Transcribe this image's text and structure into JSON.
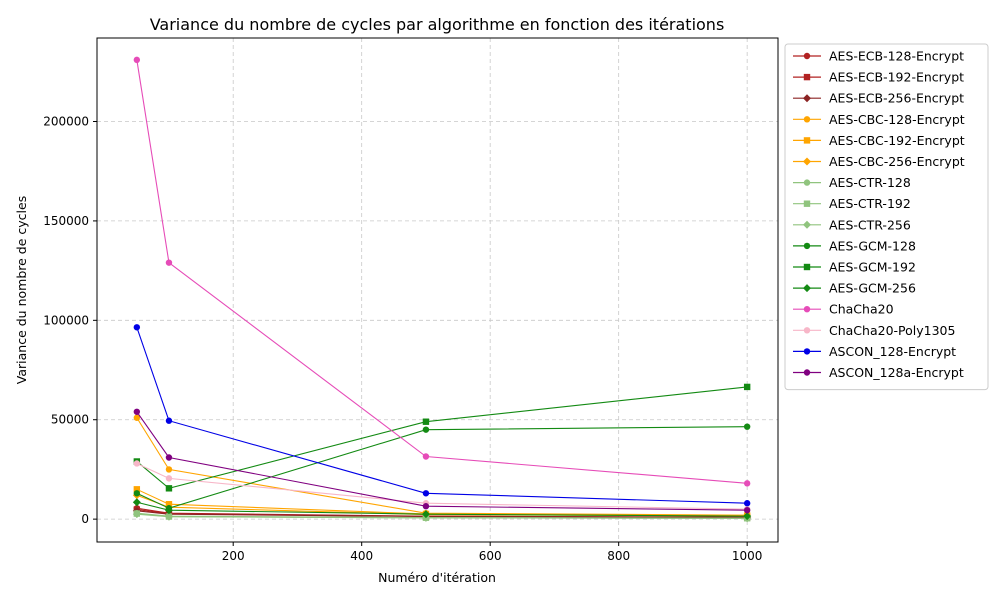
{
  "chart_data": {
    "type": "line",
    "title": "Variance du nombre de cycles par algorithme en fonction des itérations",
    "xlabel": "Numéro d'itération",
    "ylabel": "Variance du nombre de cycles",
    "xlim": [
      -12,
      1048
    ],
    "ylim": [
      -11500,
      242000
    ],
    "xticks": [
      200,
      400,
      600,
      800,
      1000
    ],
    "yticks": [
      0,
      50000,
      100000,
      150000,
      200000
    ],
    "grid": true,
    "legend_position": "outside-right",
    "x": [
      50,
      100,
      500,
      1000
    ],
    "series": [
      {
        "name": "AES-ECB-128-Encrypt",
        "color": "#b22222",
        "marker": "circle",
        "values": [
          5500,
          3000,
          1500,
          1000
        ]
      },
      {
        "name": "AES-ECB-192-Encrypt",
        "color": "#b22222",
        "marker": "square",
        "values": [
          4800,
          2800,
          1400,
          900
        ]
      },
      {
        "name": "AES-ECB-256-Encrypt",
        "color": "#8b2323",
        "marker": "diamond",
        "values": [
          4200,
          2500,
          1300,
          800
        ]
      },
      {
        "name": "AES-CBC-128-Encrypt",
        "color": "#ffa500",
        "marker": "circle",
        "values": [
          51000,
          25000,
          3000,
          2000
        ]
      },
      {
        "name": "AES-CBC-192-Encrypt",
        "color": "#ffa500",
        "marker": "square",
        "values": [
          15000,
          7500,
          2600,
          1800
        ]
      },
      {
        "name": "AES-CBC-256-Encrypt",
        "color": "#ffa500",
        "marker": "diamond",
        "values": [
          12000,
          6000,
          2300,
          1600
        ]
      },
      {
        "name": "AES-CTR-128",
        "color": "#90c47e",
        "marker": "circle",
        "values": [
          3000,
          1500,
          800,
          500
        ]
      },
      {
        "name": "AES-CTR-192",
        "color": "#90c47e",
        "marker": "square",
        "values": [
          2800,
          1300,
          700,
          450
        ]
      },
      {
        "name": "AES-CTR-256",
        "color": "#90c47e",
        "marker": "diamond",
        "values": [
          2500,
          1200,
          650,
          400
        ]
      },
      {
        "name": "AES-GCM-128",
        "color": "#138a13",
        "marker": "circle",
        "values": [
          13000,
          5500,
          45000,
          46500
        ]
      },
      {
        "name": "AES-GCM-192",
        "color": "#138a13",
        "marker": "square",
        "values": [
          29000,
          15500,
          49000,
          66500
        ]
      },
      {
        "name": "AES-GCM-256",
        "color": "#138a13",
        "marker": "diamond",
        "values": [
          8500,
          4500,
          2500,
          1500
        ]
      },
      {
        "name": "ChaCha20",
        "color": "#e64cb8",
        "marker": "circle",
        "values": [
          231000,
          129000,
          31500,
          18000
        ]
      },
      {
        "name": "ChaCha20-Poly1305",
        "color": "#f7b6c8",
        "marker": "circle",
        "values": [
          28000,
          20500,
          8000,
          5000
        ]
      },
      {
        "name": "ASCON_128-Encrypt",
        "color": "#0000e6",
        "marker": "circle",
        "values": [
          96500,
          49500,
          13000,
          8000
        ]
      },
      {
        "name": "ASCON_128a-Encrypt",
        "color": "#800080",
        "marker": "circle",
        "values": [
          54000,
          31000,
          6500,
          4500
        ]
      }
    ]
  }
}
